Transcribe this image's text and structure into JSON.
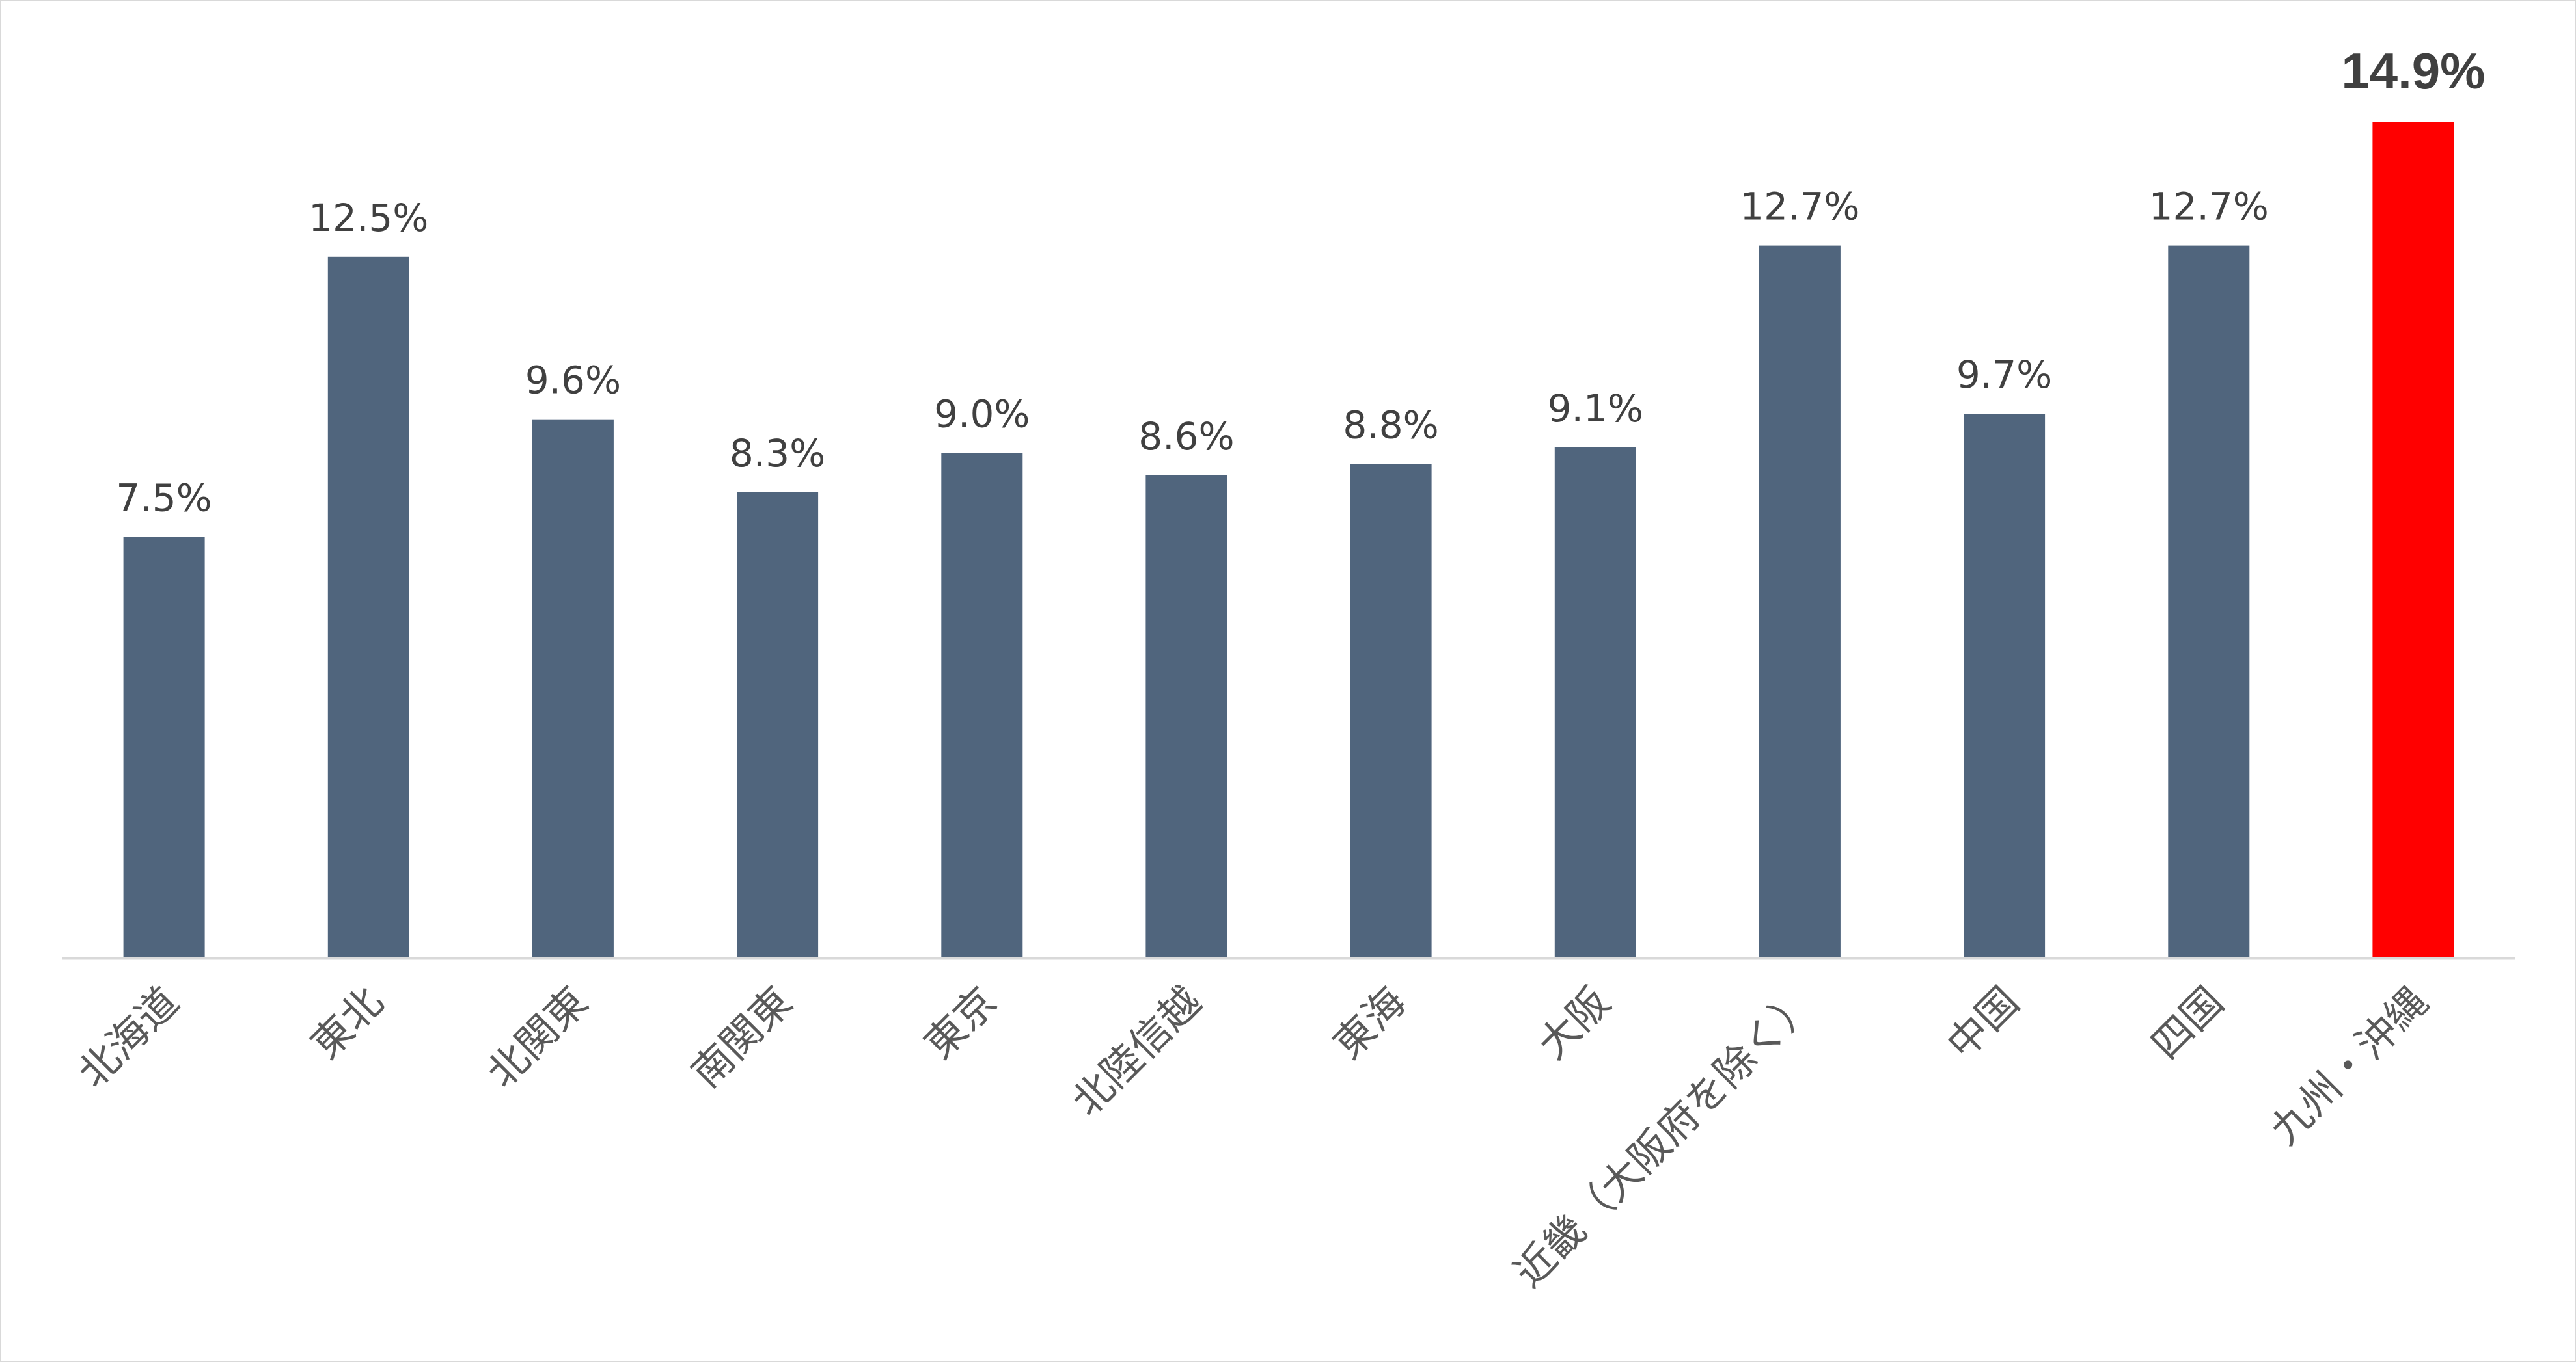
{
  "chart_data": {
    "type": "bar",
    "categories": [
      "北海道",
      "東北",
      "北関東",
      "南関東",
      "東京",
      "北陸信越",
      "東海",
      "大阪",
      "近畿（大阪府を除く）",
      "中国",
      "四国",
      "九州・沖縄"
    ],
    "values": [
      7.5,
      12.5,
      9.6,
      8.3,
      9.0,
      8.6,
      8.8,
      9.1,
      12.7,
      9.7,
      12.7,
      14.9
    ],
    "data_labels": [
      "7.5%",
      "12.5%",
      "9.6%",
      "8.3%",
      "9.0%",
      "8.6%",
      "8.8%",
      "9.1%",
      "12.7%",
      "9.7%",
      "12.7%",
      "14.9%"
    ],
    "highlight_index": 11,
    "ylim": [
      0,
      14.9
    ],
    "grid": false,
    "legend": "none",
    "title": "",
    "xlabel": "",
    "ylabel": "",
    "colors": {
      "bar": "#50657d",
      "highlight_bar": "#ff0000",
      "highlight_label": "#ee0000",
      "label": "#404040",
      "axis": "#d9d9d9",
      "category": "#595959"
    }
  }
}
